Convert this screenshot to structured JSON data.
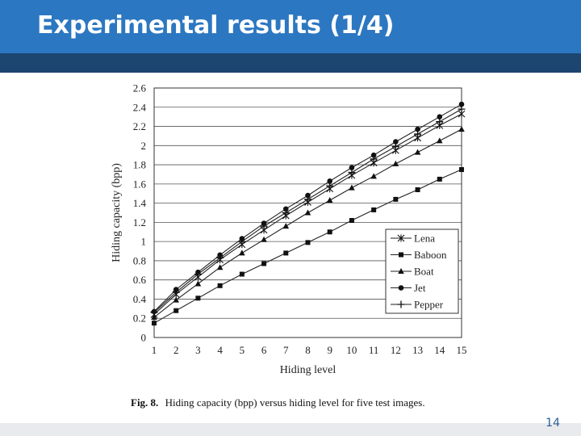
{
  "slide": {
    "title": "Experimental results (1/4)",
    "page_number": "14"
  },
  "chart_data": {
    "type": "line",
    "caption_prefix": "Fig. 8.",
    "caption_text": "Hiding capacity (bpp) versus hiding level for five test images.",
    "xlabel": "Hiding level",
    "ylabel": "Hiding capacity (bpp)",
    "x": [
      1,
      2,
      3,
      4,
      5,
      6,
      7,
      8,
      9,
      10,
      11,
      12,
      13,
      14,
      15
    ],
    "xlim": [
      1,
      15
    ],
    "ylim": [
      0,
      2.6
    ],
    "yticks": [
      0,
      0.2,
      0.4,
      0.6,
      0.8,
      1,
      1.2,
      1.4,
      1.6,
      1.8,
      2,
      2.2,
      2.4,
      2.6
    ],
    "ytick_labels": [
      "0",
      "0.2",
      "0.4",
      "0.6",
      "0.8",
      "1",
      "1.2",
      "1.4",
      "1.6",
      "1.8",
      "2",
      "2.2",
      "2.4",
      "2.6"
    ],
    "grid": "horizontal",
    "legend_position": "bottom-right",
    "series": [
      {
        "name": "Lena",
        "marker": "asterisk",
        "values": [
          0.24,
          0.45,
          0.63,
          0.81,
          0.97,
          1.12,
          1.27,
          1.41,
          1.55,
          1.69,
          1.82,
          1.95,
          2.08,
          2.21,
          2.33
        ]
      },
      {
        "name": "Baboon",
        "marker": "square",
        "values": [
          0.15,
          0.28,
          0.41,
          0.54,
          0.66,
          0.77,
          0.88,
          0.99,
          1.1,
          1.22,
          1.33,
          1.44,
          1.54,
          1.65,
          1.75
        ]
      },
      {
        "name": "Boat",
        "marker": "triangle",
        "values": [
          0.21,
          0.39,
          0.56,
          0.73,
          0.88,
          1.02,
          1.16,
          1.3,
          1.43,
          1.56,
          1.68,
          1.81,
          1.93,
          2.05,
          2.17
        ]
      },
      {
        "name": "Jet",
        "marker": "circle",
        "values": [
          0.27,
          0.5,
          0.68,
          0.86,
          1.03,
          1.19,
          1.34,
          1.48,
          1.63,
          1.77,
          1.9,
          2.04,
          2.17,
          2.3,
          2.43
        ]
      },
      {
        "name": "Pepper",
        "marker": "plus",
        "values": [
          0.26,
          0.47,
          0.66,
          0.83,
          1.0,
          1.16,
          1.3,
          1.44,
          1.58,
          1.72,
          1.86,
          1.99,
          2.12,
          2.25,
          2.38
        ]
      }
    ]
  }
}
